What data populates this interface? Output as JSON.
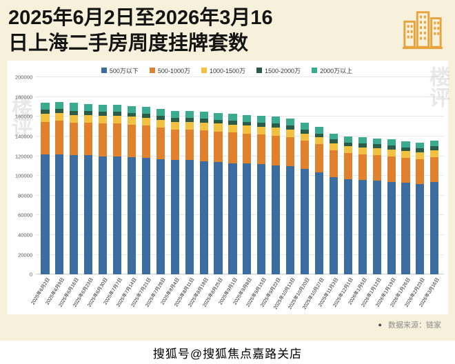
{
  "page": {
    "title_line1": "2025年6月2日至2026年3月16",
    "title_line2": "日上海二手房周度挂牌套数",
    "source_bullet": "●",
    "source_label": "数据来源：链家",
    "bottom_watermark": "搜狐号@搜狐焦点嘉路关店",
    "side_watermark": "楼评"
  },
  "colors": {
    "background": "#f7f0da",
    "panel": "#ffffff",
    "title_text": "#141414",
    "grid": "#e8e8e8",
    "source_text": "#8c8c8c",
    "building_icon": "#e8a33d"
  },
  "chart_data": {
    "type": "bar",
    "stacked": true,
    "title": "2025年6月2日至2026年3月16日上海二手房周度挂牌套数",
    "xlabel": "",
    "ylabel": "",
    "ylim": [
      0,
      200000
    ],
    "ytick_step": 20000,
    "grid": true,
    "legend_position": "top",
    "categories": [
      "2025年6月2日",
      "2025年6月9日",
      "2025年6月16日",
      "2025年6月23日",
      "2025年6月30日",
      "2025年7月7日",
      "2025年7月14日",
      "2025年7月21日",
      "2025年7月28日",
      "2025年8月4日",
      "2025年8月11日",
      "2025年8月18日",
      "2025年8月25日",
      "2025年9月1日",
      "2025年9月8日",
      "2025年9月15日",
      "2025年9月22日",
      "2025年10月13日",
      "2025年10月20日",
      "2025年10月27日",
      "2025年11月3日",
      "2025年12月1日",
      "2026年1月5日",
      "2026年1月12日",
      "2026年1月19日",
      "2026年1月26日",
      "2026年2月23日",
      "2026年3月16日"
    ],
    "series": [
      {
        "name": "500万以下",
        "color": "#3b6da0",
        "values": [
          122000,
          122000,
          121000,
          121000,
          120000,
          120000,
          119000,
          118000,
          117000,
          116000,
          116000,
          115000,
          114000,
          113000,
          113000,
          112000,
          111000,
          110000,
          107000,
          104000,
          99000,
          97000,
          96000,
          95000,
          94000,
          93000,
          92000,
          94000
        ]
      },
      {
        "name": "500-1000万",
        "color": "#e0812e",
        "values": [
          33000,
          34000,
          33000,
          33000,
          33000,
          33000,
          33000,
          33000,
          32000,
          31000,
          31000,
          31000,
          31000,
          31000,
          30000,
          30000,
          30000,
          29000,
          29000,
          28000,
          27000,
          26000,
          26000,
          26000,
          26000,
          25000,
          25000,
          25000
        ]
      },
      {
        "name": "1000-1500万",
        "color": "#f2c141",
        "values": [
          8000,
          8000,
          8000,
          8000,
          8000,
          8000,
          8000,
          8000,
          8000,
          8000,
          8000,
          8000,
          8000,
          8000,
          8000,
          8000,
          8000,
          8000,
          7000,
          7000,
          7000,
          7000,
          7000,
          7000,
          7000,
          7000,
          7000,
          7000
        ]
      },
      {
        "name": "1500-2000万",
        "color": "#2a5c48",
        "values": [
          4000,
          4000,
          4000,
          4000,
          4000,
          4000,
          4000,
          4000,
          4000,
          4000,
          4000,
          4000,
          4000,
          4000,
          4000,
          4000,
          4000,
          4000,
          4000,
          4000,
          4000,
          4000,
          4000,
          4000,
          4000,
          4000,
          4000,
          4000
        ]
      },
      {
        "name": "2000万以上",
        "color": "#3aab8e",
        "values": [
          7000,
          7000,
          8000,
          7000,
          7000,
          7000,
          7000,
          7000,
          7000,
          7000,
          7000,
          7000,
          7000,
          7000,
          7000,
          7000,
          7000,
          7000,
          7000,
          7000,
          6000,
          6000,
          6000,
          6000,
          6000,
          6000,
          6000,
          6000
        ]
      }
    ]
  }
}
